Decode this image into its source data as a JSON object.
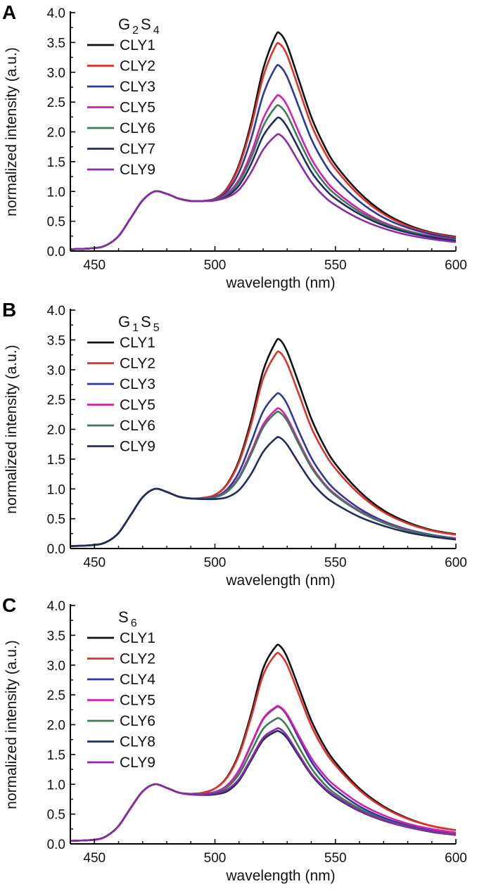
{
  "chart_data": [
    {
      "type": "line",
      "panel_label": "A",
      "legend_title": {
        "parts": [
          {
            "t": "G",
            "sub": false
          },
          {
            "t": "2",
            "sub": true
          },
          {
            "t": "S",
            "sub": false
          },
          {
            "t": "4",
            "sub": true
          }
        ]
      },
      "xlabel": "wavelength (nm)",
      "ylabel": "normalized intensity (a.u.)",
      "xlim": [
        440,
        600
      ],
      "ylim": [
        0,
        4
      ],
      "xticks": [
        450,
        500,
        550,
        600
      ],
      "yticks": [
        "0.0",
        "0.5",
        "1.0",
        "1.5",
        "2.0",
        "2.5",
        "3.0",
        "3.5",
        "4.0"
      ],
      "x": [
        440,
        450,
        455,
        460,
        465,
        470,
        475,
        480,
        485,
        490,
        495,
        500,
        505,
        510,
        515,
        520,
        525,
        527,
        530,
        535,
        540,
        545,
        550,
        560,
        570,
        580,
        590,
        600
      ],
      "series": [
        {
          "name": "CLY1",
          "color": "#111111",
          "values": [
            0.03,
            0.05,
            0.1,
            0.25,
            0.55,
            0.85,
            1.0,
            0.96,
            0.88,
            0.84,
            0.84,
            0.88,
            1.05,
            1.45,
            2.15,
            3.05,
            3.6,
            3.65,
            3.45,
            2.85,
            2.25,
            1.8,
            1.45,
            0.98,
            0.65,
            0.44,
            0.31,
            0.24
          ]
        },
        {
          "name": "CLY2",
          "color": "#e03128",
          "values": [
            0.03,
            0.05,
            0.1,
            0.25,
            0.55,
            0.85,
            1.0,
            0.96,
            0.88,
            0.84,
            0.84,
            0.88,
            1.04,
            1.42,
            2.08,
            2.92,
            3.43,
            3.47,
            3.28,
            2.7,
            2.12,
            1.7,
            1.38,
            0.93,
            0.62,
            0.42,
            0.3,
            0.23
          ]
        },
        {
          "name": "CLY3",
          "color": "#2b3a9a",
          "values": [
            0.03,
            0.05,
            0.1,
            0.25,
            0.55,
            0.85,
            1.0,
            0.96,
            0.88,
            0.84,
            0.84,
            0.87,
            1.0,
            1.32,
            1.88,
            2.62,
            3.07,
            3.1,
            2.92,
            2.4,
            1.88,
            1.5,
            1.22,
            0.83,
            0.56,
            0.39,
            0.28,
            0.21
          ]
        },
        {
          "name": "CLY5",
          "color": "#d61fb0",
          "values": [
            0.03,
            0.05,
            0.1,
            0.25,
            0.55,
            0.85,
            1.0,
            0.96,
            0.88,
            0.84,
            0.84,
            0.86,
            0.96,
            1.2,
            1.64,
            2.22,
            2.57,
            2.6,
            2.44,
            1.98,
            1.55,
            1.24,
            1.01,
            0.7,
            0.48,
            0.34,
            0.25,
            0.19
          ]
        },
        {
          "name": "CLY6",
          "color": "#3d7a5a",
          "values": [
            0.03,
            0.05,
            0.1,
            0.25,
            0.55,
            0.85,
            1.0,
            0.96,
            0.88,
            0.84,
            0.84,
            0.86,
            0.94,
            1.16,
            1.56,
            2.09,
            2.41,
            2.43,
            2.28,
            1.85,
            1.45,
            1.16,
            0.95,
            0.66,
            0.46,
            0.33,
            0.24,
            0.18
          ]
        },
        {
          "name": "CLY7",
          "color": "#222b5e",
          "values": [
            0.03,
            0.05,
            0.1,
            0.25,
            0.55,
            0.85,
            1.0,
            0.96,
            0.88,
            0.84,
            0.84,
            0.85,
            0.92,
            1.1,
            1.46,
            1.93,
            2.2,
            2.23,
            2.08,
            1.7,
            1.33,
            1.07,
            0.88,
            0.62,
            0.43,
            0.31,
            0.23,
            0.17
          ]
        },
        {
          "name": "CLY9",
          "color": "#8a2aa6",
          "values": [
            0.03,
            0.05,
            0.1,
            0.25,
            0.55,
            0.85,
            1.0,
            0.96,
            0.88,
            0.84,
            0.84,
            0.85,
            0.9,
            1.03,
            1.32,
            1.7,
            1.93,
            1.95,
            1.82,
            1.48,
            1.16,
            0.93,
            0.77,
            0.54,
            0.38,
            0.27,
            0.2,
            0.15
          ]
        }
      ]
    },
    {
      "type": "line",
      "panel_label": "B",
      "legend_title": {
        "parts": [
          {
            "t": "G",
            "sub": false
          },
          {
            "t": "1",
            "sub": true
          },
          {
            "t": "S",
            "sub": false
          },
          {
            "t": "5",
            "sub": true
          }
        ]
      },
      "xlabel": "wavelength (nm)",
      "ylabel": "normalized intensity (a.u.)",
      "xlim": [
        440,
        600
      ],
      "ylim": [
        0,
        4
      ],
      "xticks": [
        450,
        500,
        550,
        600
      ],
      "yticks": [
        "0.0",
        "0.5",
        "1.0",
        "1.5",
        "2.0",
        "2.5",
        "3.0",
        "3.5",
        "4.0"
      ],
      "x": [
        440,
        450,
        455,
        460,
        465,
        470,
        475,
        480,
        485,
        490,
        495,
        500,
        505,
        510,
        515,
        520,
        525,
        527,
        530,
        535,
        540,
        545,
        550,
        560,
        570,
        580,
        590,
        600
      ],
      "series": [
        {
          "name": "CLY1",
          "color": "#111111",
          "values": [
            0.04,
            0.06,
            0.11,
            0.26,
            0.56,
            0.86,
            1.0,
            0.95,
            0.87,
            0.84,
            0.85,
            0.9,
            1.08,
            1.48,
            2.15,
            2.98,
            3.45,
            3.5,
            3.3,
            2.75,
            2.18,
            1.75,
            1.42,
            0.96,
            0.64,
            0.44,
            0.31,
            0.24
          ]
        },
        {
          "name": "CLY2",
          "color": "#e03128",
          "values": [
            0.04,
            0.06,
            0.11,
            0.26,
            0.56,
            0.86,
            1.0,
            0.95,
            0.87,
            0.84,
            0.85,
            0.9,
            1.07,
            1.45,
            2.08,
            2.85,
            3.25,
            3.29,
            3.1,
            2.57,
            2.03,
            1.64,
            1.34,
            0.91,
            0.61,
            0.42,
            0.3,
            0.23
          ]
        },
        {
          "name": "CLY3",
          "color": "#2b3a9a",
          "values": [
            0.04,
            0.06,
            0.11,
            0.26,
            0.56,
            0.86,
            1.0,
            0.95,
            0.87,
            0.84,
            0.84,
            0.87,
            0.99,
            1.28,
            1.78,
            2.3,
            2.57,
            2.59,
            2.42,
            1.95,
            1.52,
            1.21,
            0.98,
            0.67,
            0.46,
            0.32,
            0.23,
            0.17
          ]
        },
        {
          "name": "CLY5",
          "color": "#d61fb0",
          "values": [
            0.04,
            0.06,
            0.11,
            0.26,
            0.56,
            0.86,
            1.0,
            0.95,
            0.87,
            0.84,
            0.84,
            0.86,
            0.96,
            1.2,
            1.62,
            2.08,
            2.32,
            2.34,
            2.19,
            1.78,
            1.39,
            1.11,
            0.91,
            0.63,
            0.44,
            0.31,
            0.22,
            0.17
          ]
        },
        {
          "name": "CLY6",
          "color": "#3d7a5a",
          "values": [
            0.04,
            0.06,
            0.11,
            0.26,
            0.56,
            0.86,
            1.0,
            0.95,
            0.87,
            0.84,
            0.84,
            0.86,
            0.95,
            1.18,
            1.58,
            2.03,
            2.27,
            2.28,
            2.14,
            1.74,
            1.36,
            1.09,
            0.89,
            0.62,
            0.43,
            0.3,
            0.22,
            0.16
          ]
        },
        {
          "name": "CLY9",
          "color": "#222b5e",
          "values": [
            0.04,
            0.06,
            0.11,
            0.26,
            0.56,
            0.86,
            1.0,
            0.95,
            0.87,
            0.84,
            0.83,
            0.83,
            0.86,
            0.98,
            1.25,
            1.62,
            1.84,
            1.86,
            1.74,
            1.42,
            1.12,
            0.9,
            0.75,
            0.53,
            0.38,
            0.27,
            0.2,
            0.15
          ]
        }
      ]
    },
    {
      "type": "line",
      "panel_label": "C",
      "legend_title": {
        "parts": [
          {
            "t": "S",
            "sub": false
          },
          {
            "t": "6",
            "sub": true
          }
        ]
      },
      "xlabel": "wavelength (nm)",
      "ylabel": "normalized intensity (a.u.)",
      "xlim": [
        440,
        600
      ],
      "ylim": [
        0,
        4
      ],
      "xticks": [
        450,
        500,
        550,
        600
      ],
      "yticks": [
        "0.0",
        "0.5",
        "1.0",
        "1.5",
        "2.0",
        "2.5",
        "3.0",
        "3.5",
        "4.0"
      ],
      "x": [
        440,
        450,
        455,
        460,
        465,
        470,
        475,
        480,
        485,
        490,
        495,
        500,
        505,
        510,
        515,
        520,
        525,
        527,
        530,
        535,
        540,
        545,
        550,
        560,
        570,
        580,
        590,
        600
      ],
      "series": [
        {
          "name": "CLY1",
          "color": "#111111",
          "values": [
            0.05,
            0.07,
            0.13,
            0.3,
            0.6,
            0.88,
            1.0,
            0.94,
            0.86,
            0.84,
            0.86,
            0.93,
            1.12,
            1.52,
            2.18,
            2.94,
            3.3,
            3.32,
            3.13,
            2.6,
            2.07,
            1.67,
            1.37,
            0.93,
            0.63,
            0.43,
            0.3,
            0.23
          ]
        },
        {
          "name": "CLY2",
          "color": "#e03128",
          "values": [
            0.05,
            0.07,
            0.13,
            0.3,
            0.6,
            0.88,
            1.0,
            0.94,
            0.86,
            0.84,
            0.86,
            0.93,
            1.11,
            1.49,
            2.12,
            2.83,
            3.17,
            3.18,
            3.0,
            2.49,
            1.98,
            1.6,
            1.32,
            0.9,
            0.61,
            0.42,
            0.3,
            0.23
          ]
        },
        {
          "name": "CLY4",
          "color": "#2b3a9a",
          "values": [
            0.05,
            0.07,
            0.13,
            0.3,
            0.6,
            0.88,
            1.0,
            0.94,
            0.86,
            0.83,
            0.84,
            0.87,
            0.98,
            1.23,
            1.66,
            2.09,
            2.28,
            2.29,
            2.15,
            1.76,
            1.38,
            1.11,
            0.91,
            0.63,
            0.44,
            0.31,
            0.22,
            0.17
          ]
        },
        {
          "name": "CLY5",
          "color": "#d61fb0",
          "values": [
            0.05,
            0.07,
            0.13,
            0.3,
            0.6,
            0.88,
            1.0,
            0.94,
            0.86,
            0.83,
            0.84,
            0.87,
            0.98,
            1.24,
            1.67,
            2.1,
            2.29,
            2.3,
            2.17,
            1.8,
            1.44,
            1.17,
            0.97,
            0.68,
            0.48,
            0.34,
            0.25,
            0.19
          ]
        },
        {
          "name": "CLY6",
          "color": "#3d7a5a",
          "values": [
            0.05,
            0.07,
            0.13,
            0.3,
            0.6,
            0.88,
            1.0,
            0.94,
            0.86,
            0.83,
            0.84,
            0.86,
            0.95,
            1.17,
            1.55,
            1.93,
            2.09,
            2.1,
            1.97,
            1.61,
            1.27,
            1.02,
            0.84,
            0.59,
            0.41,
            0.29,
            0.21,
            0.16
          ]
        },
        {
          "name": "CLY8",
          "color": "#222b5e",
          "values": [
            0.05,
            0.07,
            0.13,
            0.3,
            0.6,
            0.88,
            1.0,
            0.94,
            0.86,
            0.83,
            0.82,
            0.83,
            0.88,
            1.06,
            1.4,
            1.74,
            1.88,
            1.88,
            1.77,
            1.46,
            1.16,
            0.94,
            0.78,
            0.55,
            0.39,
            0.28,
            0.2,
            0.15
          ]
        },
        {
          "name": "CLY9",
          "color": "#8a2aa6",
          "values": [
            0.05,
            0.07,
            0.13,
            0.3,
            0.6,
            0.88,
            1.0,
            0.94,
            0.86,
            0.83,
            0.83,
            0.85,
            0.91,
            1.09,
            1.43,
            1.78,
            1.92,
            1.93,
            1.81,
            1.49,
            1.18,
            0.96,
            0.8,
            0.56,
            0.4,
            0.28,
            0.21,
            0.15
          ]
        }
      ]
    }
  ]
}
